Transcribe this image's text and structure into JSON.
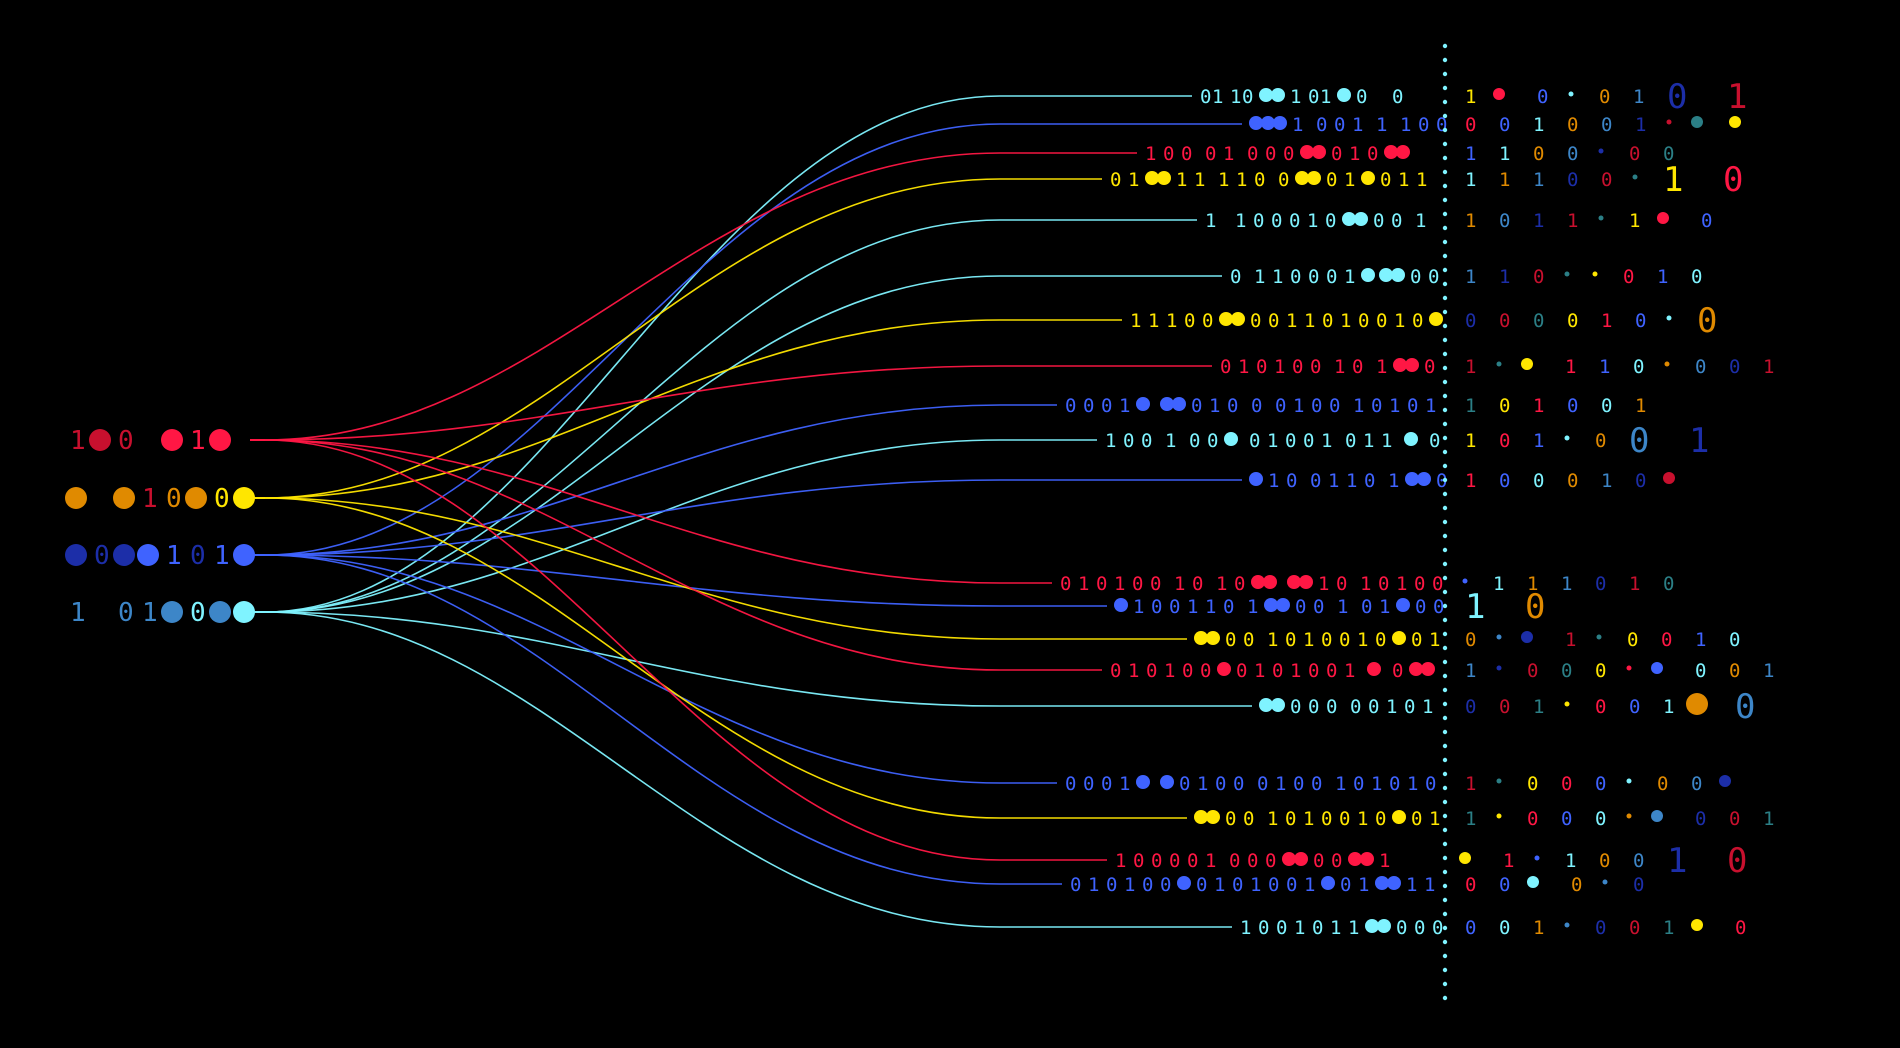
{
  "palette": {
    "background": "#000000",
    "red": "#ff1744",
    "yellow": "#ffe600",
    "blue": "#3f63ff",
    "cyan": "#7ff3ff",
    "orange": "#e08a00",
    "darkred": "#c8102e",
    "navy": "#1c2ea8",
    "steel": "#3d86c8",
    "teal": "#2b7f86"
  },
  "sources": [
    {
      "id": "red",
      "color": "red",
      "glyphs": [
        "1",
        "●",
        "0",
        "",
        "●",
        "1",
        "●"
      ],
      "glyph_colors": [
        "darkred",
        "darkred",
        "darkred",
        "",
        "red",
        "red",
        "red"
      ]
    },
    {
      "id": "yellow",
      "color": "yellow",
      "glyphs": [
        "●",
        "",
        "●",
        "1",
        "0",
        "●",
        "0",
        "●"
      ],
      "glyph_colors": [
        "orange",
        "",
        "orange",
        "darkred",
        "orange",
        "orange",
        "yellow",
        "yellow"
      ]
    },
    {
      "id": "blue",
      "color": "blue",
      "glyphs": [
        "●",
        "0",
        "●",
        "●",
        "1",
        "0",
        "1",
        "●"
      ],
      "glyph_colors": [
        "navy",
        "navy",
        "navy",
        "blue",
        "blue",
        "navy",
        "blue",
        "blue"
      ]
    },
    {
      "id": "cyan",
      "color": "cyan",
      "glyphs": [
        "1",
        "",
        "0",
        "1",
        "●",
        "0",
        "●",
        "●"
      ],
      "glyph_colors": [
        "steel",
        "",
        "steel",
        "steel",
        "steel",
        "cyan",
        "steel",
        "cyan"
      ]
    }
  ],
  "streams": [
    {
      "src": "cyan",
      "color": "cyan",
      "bits": "01 10 ●● 1 01 ● 0    0",
      "right": "1 ● 0 • 0 1 0 1"
    },
    {
      "src": "blue",
      "color": "blue",
      "bits": "●●● 1  0 0 1  1  1 0 0 0",
      "right": "0 0 1 0 0 1 • ● ●"
    },
    {
      "src": "red",
      "color": "red",
      "bits": "1 0 0  0 1  0 0 0 ●● 0 1 0 ●●",
      "right": "1 1 0 0 • 0 0"
    },
    {
      "src": "yellow",
      "color": "yellow",
      "bits": "0 1 ●● 1 1  1 1 0  0 ●● 0 1 ● 0 1 1  1  1",
      "right": "1 1 1  0  0 • 1 0"
    },
    {
      "src": "cyan",
      "color": "cyan",
      "bits": "1   1 0 0 0 1 0 ●● 0 0  1  0",
      "right": "1 0 1 1 • 1 ● 0"
    },
    {
      "src": "cyan",
      "color": "cyan",
      "bits": "0  1 1 0 0 0 1 ● ●● 0 0 1 0",
      "right": "1 1 0 • • 0 1 0"
    },
    {
      "src": "yellow",
      "color": "yellow",
      "bits": "1 1 1 0 0 ●● 0 0 1 1 0 1 0 0 1 0 ● 0 1 1",
      "right": "0 0 0 0 1 0 • 0"
    },
    {
      "src": "red",
      "color": "red",
      "bits": "0 1 0 1 0 0  1 0  1 ●● 0 0 1",
      "right": "1 • ● 1 1 0 • 0 0 1"
    },
    {
      "src": "blue",
      "color": "blue",
      "bits": "0 0 0 1 ●  ●● 0 1 0  0  0 1 0 0  1 0 1 0 1  0",
      "right": "1 0 1 0 0 1"
    },
    {
      "src": "cyan",
      "color": "cyan",
      "bits": "1 0 0  1  0 0 ●  0 1 0 0 1  0 1 1  ●  0 0 0",
      "right": "1 0 1 • 0 0 1"
    },
    {
      "src": "blue",
      "color": "blue",
      "bits": "● 1 0  0 1 1 0  1 ●● 0",
      "right": "1 0 0 0 1 0 ●"
    },
    {
      "src": "red",
      "color": "red",
      "bits": "0 1 0 1 0 0  1 0  1 0 ●●  ●● 1 0  1 0 1 0 0 1",
      "right": "• 1 1  1  0 1 0"
    },
    {
      "src": "blue",
      "color": "blue",
      "bits": "● 1 0 0 1 1 0  1 ●● 0 0  1  0 1 ● 0 0",
      "right": "1 0"
    },
    {
      "src": "yellow",
      "color": "yellow",
      "bits": "●● 0 0  1 0 1 0 0 1 0 ● 0 1 ●",
      "right": "0 • ● 1 • 0 0 1 0"
    },
    {
      "src": "red",
      "color": "red",
      "bits": "0 1 0 1 0 0 ● 0 1 0 1 0 0 1  ●  0 ●● 1",
      "right": "1 • 0 0 0 • ● 0 0 1"
    },
    {
      "src": "cyan",
      "color": "cyan",
      "bits": "●● 0 0 0  0 0 1 0 1",
      "right": "0 0 1 • 0 0 1 ● 0"
    },
    {
      "src": "blue",
      "color": "blue",
      "bits": "0 0 0 1 ●  ● 0 1 0 0  0 1 0 0  1 0 1 0 1 0",
      "right": "1 • 0 0  0 • 0 0 ●"
    },
    {
      "src": "yellow",
      "color": "yellow",
      "bits": "●● 0 0  1 0 1 0 0 1 0 ● 0 1 ●",
      "right": "1 • 0 0  0 • ● 0 0 1"
    },
    {
      "src": "red",
      "color": "red",
      "bits": "1 0 0 0 0 1  0 0 0 ●● 0 0 ●● 1",
      "right": "● 1 • 1 0  0 1 0"
    },
    {
      "src": "blue",
      "color": "blue",
      "bits": "0 1 0 1 0 0 ● 0 1 0 1 0 0 1 ● 0 1 ●● 1 1",
      "right": "0 0 ● 0 • 0"
    },
    {
      "src": "cyan",
      "color": "cyan",
      "bits": "1 0 0 1 0 1 1 ●● 0 0 0",
      "right": "0 0 1 • 0 0 1 ● 0"
    }
  ]
}
